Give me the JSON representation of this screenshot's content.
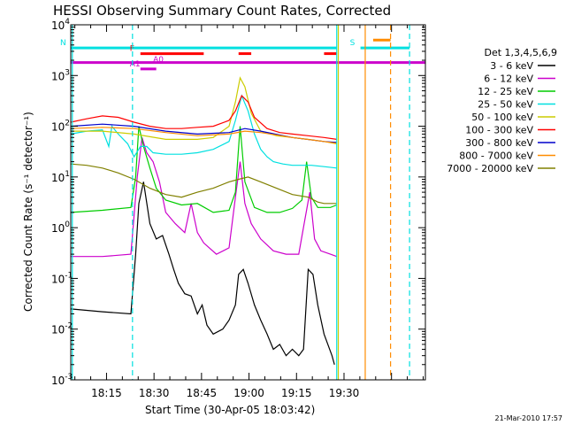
{
  "chart_data": {
    "type": "line",
    "title": "HESSI Observing Summary Count Rates, Corrected",
    "xlabel": "Start Time (30-Apr-05 18:03:42)",
    "ylabel": "Corrected Count Rate (s⁻¹ detector⁻¹)",
    "yscale": "log",
    "ylim": [
      0.001,
      10000
    ],
    "xlim_minutes": [
      0,
      112
    ],
    "x_tick_labels": [
      "18:15",
      "18:30",
      "18:45",
      "19:00",
      "19:15",
      "19:30"
    ],
    "x_tick_minutes": [
      11.3,
      26.3,
      41.3,
      56.3,
      71.3,
      86.3
    ],
    "y_tick_labels": [
      {
        "base": "10",
        "exp": "-3"
      },
      {
        "base": "10",
        "exp": "-2"
      },
      {
        "base": "10",
        "exp": "-1"
      },
      {
        "base": "10",
        "exp": "0"
      },
      {
        "base": "10",
        "exp": "1"
      },
      {
        "base": "10",
        "exp": "2"
      },
      {
        "base": "10",
        "exp": "3"
      },
      {
        "base": "10",
        "exp": "4"
      }
    ],
    "legend_header": "Det 1,3,4,5,6,9",
    "legend_position": "right",
    "series": [
      {
        "name": "3 - 6 keV",
        "color": "#000000",
        "x": [
          0,
          10,
          19,
          20.5,
          21.5,
          23,
          25,
          27,
          29,
          31,
          32.5,
          34,
          36,
          38,
          40,
          41.5,
          43,
          45,
          48,
          50,
          52,
          53,
          54.5,
          56,
          58,
          60,
          62,
          64,
          66,
          68,
          70,
          72,
          73.5,
          75,
          76.5,
          78,
          80,
          82.5,
          83.3
        ],
        "y": [
          0.025,
          0.022,
          0.02,
          0.3,
          3,
          8,
          1.2,
          0.6,
          0.7,
          0.3,
          0.15,
          0.08,
          0.05,
          0.045,
          0.02,
          0.03,
          0.012,
          0.008,
          0.01,
          0.015,
          0.03,
          0.12,
          0.15,
          0.08,
          0.03,
          0.015,
          0.008,
          0.004,
          0.005,
          0.003,
          0.004,
          0.003,
          0.004,
          0.15,
          0.12,
          0.03,
          0.008,
          0.003,
          0.002
        ]
      },
      {
        "name": "6 - 12 keV",
        "color": "#cc00cc",
        "x": [
          0,
          10,
          19,
          21,
          22.5,
          24,
          26,
          28,
          30,
          33,
          36,
          38,
          40,
          42,
          46,
          50,
          52,
          53.5,
          55,
          57,
          60,
          64,
          68,
          72,
          74,
          75.5,
          77,
          79,
          82,
          84
        ],
        "y": [
          0.27,
          0.27,
          0.3,
          10,
          60,
          30,
          20,
          8,
          2,
          1.2,
          0.8,
          3,
          0.8,
          0.5,
          0.3,
          0.4,
          4,
          20,
          3,
          1.2,
          0.6,
          0.35,
          0.3,
          0.3,
          1.5,
          5,
          0.6,
          0.35,
          0.3,
          0.27
        ]
      },
      {
        "name": "12 - 25 keV",
        "color": "#00cc00",
        "x": [
          0,
          10,
          19,
          20.5,
          21.5,
          23,
          25,
          27,
          30,
          35,
          40,
          45,
          50,
          52,
          53.5,
          55,
          58,
          62,
          66,
          70,
          73,
          74.5,
          76,
          78,
          82,
          84
        ],
        "y": [
          2,
          2.2,
          2.5,
          10,
          100,
          40,
          15,
          6,
          3.5,
          2.8,
          3,
          2,
          2.2,
          5,
          100,
          8,
          2.5,
          2,
          2,
          2.4,
          3.5,
          20,
          4,
          2.5,
          2.5,
          2.8
        ]
      },
      {
        "name": "25 - 50 keV",
        "color": "#00e0e0",
        "x": [
          0,
          5,
          10,
          12,
          13,
          15,
          18,
          20,
          22,
          24,
          26,
          30,
          35,
          40,
          45,
          50,
          52,
          54,
          56,
          58,
          60,
          62,
          64,
          67,
          70,
          73,
          76,
          80,
          84
        ],
        "y": [
          70,
          80,
          85,
          40,
          100,
          70,
          45,
          25,
          40,
          40,
          30,
          28,
          28,
          30,
          35,
          50,
          130,
          400,
          200,
          70,
          35,
          25,
          20,
          18,
          17,
          17,
          17,
          16,
          15
        ]
      },
      {
        "name": "50 - 100 keV",
        "color": "#cccc00",
        "x": [
          0,
          10,
          20,
          30,
          40,
          45,
          50,
          52,
          53.5,
          55,
          57,
          60,
          65,
          70,
          75,
          80,
          84
        ],
        "y": [
          80,
          80,
          70,
          55,
          55,
          60,
          100,
          300,
          900,
          600,
          180,
          80,
          65,
          60,
          55,
          50,
          45
        ]
      },
      {
        "name": "100 - 300 keV",
        "color": "#ff0000",
        "x": [
          0,
          5,
          10,
          15,
          20,
          25,
          30,
          35,
          40,
          45,
          50,
          52,
          54,
          56,
          58,
          62,
          66,
          70,
          75,
          80,
          84
        ],
        "y": [
          120,
          140,
          160,
          150,
          120,
          100,
          90,
          90,
          95,
          100,
          130,
          200,
          400,
          300,
          150,
          90,
          75,
          70,
          65,
          60,
          55
        ]
      },
      {
        "name": "300 - 800 keV",
        "color": "#0000cc",
        "x": [
          0,
          10,
          20,
          30,
          40,
          50,
          55,
          60,
          70,
          80,
          84
        ],
        "y": [
          100,
          110,
          100,
          80,
          70,
          75,
          90,
          80,
          60,
          50,
          48
        ]
      },
      {
        "name": "800 - 7000 keV",
        "color": "#ff8c00",
        "x": [
          0,
          10,
          20,
          30,
          40,
          50,
          55,
          60,
          70,
          80,
          84
        ],
        "y": [
          90,
          95,
          90,
          75,
          65,
          70,
          80,
          75,
          60,
          50,
          46
        ]
      },
      {
        "name": "7000 - 20000 keV",
        "color": "#808000",
        "x": [
          0,
          5,
          10,
          15,
          20,
          25,
          30,
          35,
          40,
          45,
          50,
          53,
          56,
          60,
          65,
          70,
          75,
          78,
          80,
          84
        ],
        "y": [
          18,
          17,
          15,
          12,
          9,
          6,
          4.5,
          4,
          5,
          6,
          8,
          9,
          10,
          8,
          6,
          4.5,
          4,
          3.2,
          3,
          3
        ]
      }
    ],
    "flags": [
      {
        "label": "N",
        "color": "#00e0e0",
        "y": 3500,
        "x_start": 0,
        "x_end": 84
      },
      {
        "label": "F",
        "color": "#ff0000",
        "y": 2700,
        "segments": [
          [
            22,
            42
          ],
          [
            53,
            57
          ],
          [
            80,
            84
          ]
        ]
      },
      {
        "label": "",
        "color": "#cc00cc",
        "y": 1800,
        "x_start": 0,
        "x_end": 112
      },
      {
        "label": "A1",
        "color": "#cc00cc",
        "y": 1350,
        "segments": [
          [
            22,
            27
          ]
        ]
      },
      {
        "label": "A0",
        "color": "#cc00cc",
        "y": 1650
      },
      {
        "label": "S",
        "color": "#00e0e0",
        "y": 3500,
        "x_start": 91.5,
        "x_end": 107
      },
      {
        "label": "",
        "color": "#ff8c00",
        "y": 5000,
        "x_start": 95.5,
        "x_end": 101
      }
    ],
    "vertical_markers": [
      {
        "x": 19.5,
        "color": "#00e0e0",
        "style": "dashed"
      },
      {
        "x": 0.5,
        "color": "#00e0e0",
        "style": "solid"
      },
      {
        "x": 84,
        "color": "#00e0e0",
        "style": "solid"
      },
      {
        "x": 107,
        "color": "#00e0e0",
        "style": "dashed"
      },
      {
        "x": 84.5,
        "color": "#cccc00",
        "style": "solid"
      },
      {
        "x": 93,
        "color": "#ff8c00",
        "style": "solid"
      },
      {
        "x": 101,
        "color": "#ff8c00",
        "style": "dashed"
      }
    ],
    "footer_date": "21-Mar-2010 17:57"
  }
}
